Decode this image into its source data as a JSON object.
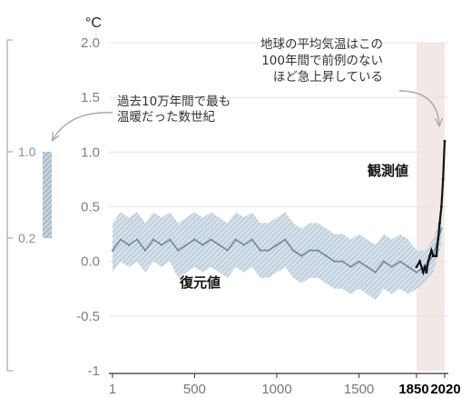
{
  "chart_data": {
    "type": "line",
    "y_unit": "°C",
    "ylim": [
      -1,
      2
    ],
    "y_ticks": [
      "2.0",
      "1.5",
      "1.0",
      "0.5",
      "0.0",
      "-0.5",
      "-1"
    ],
    "x_ticks": [
      {
        "label": "1",
        "value": 1,
        "bold": false
      },
      {
        "label": "500",
        "value": 500,
        "bold": false
      },
      {
        "label": "1000",
        "value": 1000,
        "bold": false
      },
      {
        "label": "1500",
        "value": 1500,
        "bold": false
      },
      {
        "label": "1850",
        "value": 1850,
        "bold": true
      },
      {
        "label": "2020",
        "value": 2020,
        "bold": true
      }
    ],
    "grid": true,
    "highlight_period": [
      1850,
      2020
    ],
    "series": [
      {
        "name": "復元値",
        "color": "#6f8a9c",
        "x": [
          1,
          50,
          100,
          150,
          200,
          250,
          300,
          350,
          400,
          450,
          500,
          550,
          600,
          650,
          700,
          750,
          800,
          850,
          900,
          950,
          1000,
          1050,
          1100,
          1150,
          1200,
          1250,
          1300,
          1350,
          1400,
          1450,
          1500,
          1550,
          1600,
          1650,
          1700,
          1750,
          1800,
          1850,
          1900,
          1950,
          2000
        ],
        "values": [
          0.1,
          0.2,
          0.15,
          0.2,
          0.1,
          0.2,
          0.15,
          0.2,
          0.1,
          0.15,
          0.2,
          0.15,
          0.2,
          0.15,
          0.1,
          0.2,
          0.15,
          0.2,
          0.1,
          0.1,
          0.15,
          0.2,
          0.1,
          0.05,
          0.1,
          0.1,
          0.05,
          0.0,
          0.0,
          -0.05,
          0.0,
          -0.05,
          -0.1,
          0.0,
          -0.05,
          0.0,
          -0.05,
          -0.1,
          -0.05,
          0.05,
          0.3
        ],
        "lower": [
          -0.1,
          0.0,
          -0.05,
          0.0,
          -0.1,
          0.0,
          -0.05,
          0.0,
          -0.15,
          -0.1,
          -0.05,
          -0.1,
          -0.05,
          -0.1,
          -0.15,
          -0.05,
          -0.1,
          -0.05,
          -0.15,
          -0.15,
          -0.1,
          -0.05,
          -0.15,
          -0.2,
          -0.15,
          -0.15,
          -0.2,
          -0.25,
          -0.25,
          -0.3,
          -0.25,
          -0.3,
          -0.35,
          -0.25,
          -0.3,
          -0.25,
          -0.3,
          -0.25,
          -0.2,
          -0.1,
          0.15
        ],
        "upper": [
          0.35,
          0.45,
          0.4,
          0.45,
          0.35,
          0.45,
          0.4,
          0.45,
          0.35,
          0.4,
          0.45,
          0.4,
          0.45,
          0.4,
          0.35,
          0.45,
          0.4,
          0.45,
          0.35,
          0.35,
          0.4,
          0.45,
          0.35,
          0.3,
          0.35,
          0.35,
          0.3,
          0.25,
          0.25,
          0.2,
          0.25,
          0.2,
          0.15,
          0.25,
          0.2,
          0.25,
          0.2,
          0.1,
          0.1,
          0.2,
          0.45
        ]
      },
      {
        "name": "観測値",
        "color": "#111111",
        "x": [
          1850,
          1870,
          1890,
          1900,
          1910,
          1920,
          1930,
          1940,
          1950,
          1960,
          1970,
          1980,
          1990,
          2000,
          2010,
          2020
        ],
        "values": [
          -0.05,
          0.0,
          -0.1,
          -0.05,
          -0.1,
          0.0,
          0.05,
          0.1,
          0.05,
          0.05,
          0.05,
          0.2,
          0.35,
          0.5,
          0.75,
          1.1
        ]
      }
    ],
    "annotations": [
      {
        "lines": [
          "地球の平均気温はこの",
          "100年間で前例のない",
          "ほど急上昇している"
        ]
      },
      {
        "lines": [
          "過去10万年間で最も",
          "温暖だった数世紀"
        ]
      }
    ],
    "inset": {
      "label_high": "1.0",
      "label_low": "0.2",
      "range": [
        0.2,
        1.0
      ]
    }
  }
}
